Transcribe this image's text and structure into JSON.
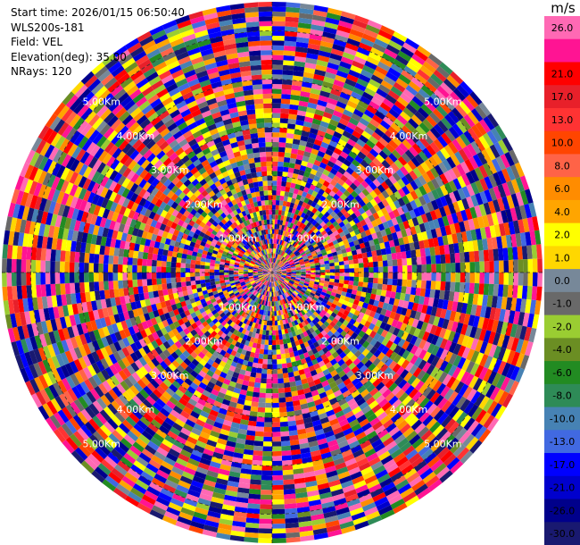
{
  "header": {
    "start_time": "Start time: 2026/01/15 06:50:40",
    "instrument": "WLS200s-181",
    "field": "Field: VEL",
    "elevation": "Elevation(deg): 35.00",
    "nrays": "NRays: 120"
  },
  "chart_data": {
    "type": "heatmap",
    "projection": "polar-ppi",
    "field": "VEL",
    "units": "m/s",
    "n_rays": 120,
    "elevation_deg": 35.0,
    "range_rings_km": [
      1.0,
      2.0,
      3.0,
      4.0,
      5.0
    ],
    "range_ring_labels": [
      "1.00Km",
      "2.00Km",
      "3.00Km",
      "4.00Km",
      "5.00Km"
    ],
    "max_range_km": 5.6,
    "n_gates": 56,
    "colorbar": {
      "unit": "m/s",
      "bins": [
        {
          "label": "26.0",
          "color": "#ff69b4"
        },
        {
          "label": "",
          "color": "#ff1493"
        },
        {
          "label": "21.0",
          "color": "#ff0000"
        },
        {
          "label": "17.0",
          "color": "#e8202a"
        },
        {
          "label": "13.0",
          "color": "#ff3333"
        },
        {
          "label": "10.0",
          "color": "#ff4500"
        },
        {
          "label": "8.0",
          "color": "#ff6347"
        },
        {
          "label": "6.0",
          "color": "#ff8c00"
        },
        {
          "label": "4.0",
          "color": "#ffa500"
        },
        {
          "label": "2.0",
          "color": "#ffff00"
        },
        {
          "label": "1.0",
          "color": "#ffd700"
        },
        {
          "label": "0.0",
          "color": "#778899"
        },
        {
          "label": "-1.0",
          "color": "#696969"
        },
        {
          "label": "-2.0",
          "color": "#9acd32"
        },
        {
          "label": "-4.0",
          "color": "#6b8e23"
        },
        {
          "label": "-6.0",
          "color": "#228b22"
        },
        {
          "label": "-8.0",
          "color": "#2e8b57"
        },
        {
          "label": "-10.0",
          "color": "#4682b4"
        },
        {
          "label": "-13.0",
          "color": "#4169e1"
        },
        {
          "label": "-17.0",
          "color": "#0000ff"
        },
        {
          "label": "-21.0",
          "color": "#0000cd"
        },
        {
          "label": "-26.0",
          "color": "#00008b"
        },
        {
          "label": "-30.0",
          "color": "#191970"
        }
      ]
    }
  }
}
